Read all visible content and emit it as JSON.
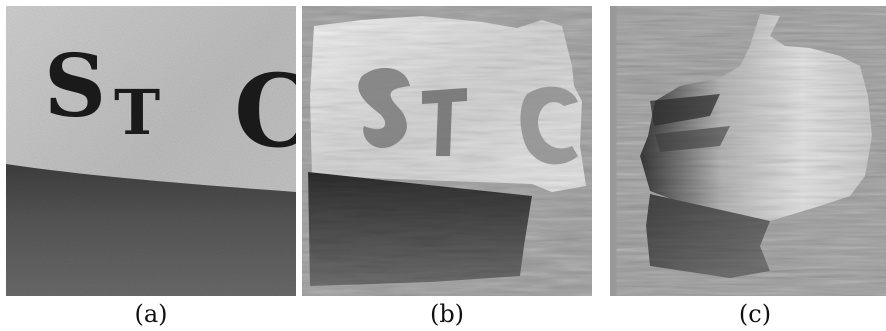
{
  "figure": {
    "panels": [
      {
        "id": "a",
        "caption": "(a)",
        "text_in_image": "ST C"
      },
      {
        "id": "b",
        "caption": "(b)"
      },
      {
        "id": "c",
        "caption": "(c)"
      }
    ],
    "colors": {
      "background_gray": "#999999",
      "stone_light": "#c9c9c9",
      "stone_dark": "#4f4f4f",
      "letter": "#1a1a1a"
    }
  }
}
